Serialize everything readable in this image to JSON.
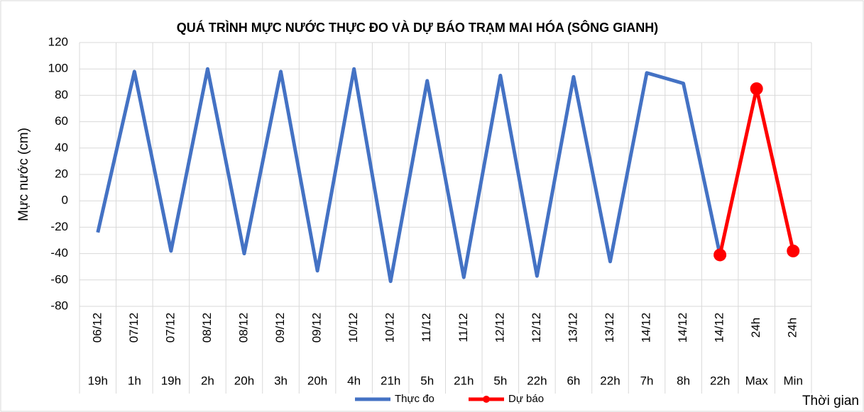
{
  "chart_data": {
    "type": "line",
    "title": "QUÁ TRÌNH MỰC NƯỚC THỰC ĐO VÀ DỰ BÁO TRẠM MAI HÓA (SÔNG GIANH)",
    "y_label": "Mực nước (cm)",
    "x_label": "Thời gian",
    "categories": [
      [
        "06/12",
        "19h"
      ],
      [
        "07/12",
        "1h"
      ],
      [
        "07/12",
        "19h"
      ],
      [
        "08/12",
        "2h"
      ],
      [
        "08/12",
        "20h"
      ],
      [
        "09/12",
        "3h"
      ],
      [
        "09/12",
        "20h"
      ],
      [
        "10/12",
        "4h"
      ],
      [
        "10/12",
        "21h"
      ],
      [
        "11/12",
        "5h"
      ],
      [
        "11/12",
        "21h"
      ],
      [
        "12/12",
        "5h"
      ],
      [
        "12/12",
        "22h"
      ],
      [
        "13/12",
        "6h"
      ],
      [
        "13/12",
        "22h"
      ],
      [
        "14/12",
        "7h"
      ],
      [
        "14/12",
        "8h"
      ],
      [
        "14/12",
        "22h"
      ],
      [
        "24h",
        "Max"
      ],
      [
        "24h",
        "Min"
      ]
    ],
    "series": [
      {
        "name": "Thực đo",
        "color": "#4472c4",
        "markers": false,
        "values": [
          -24,
          98,
          -38,
          100,
          -40,
          98,
          -53,
          100,
          -61,
          91,
          -58,
          95,
          -57,
          94,
          -46,
          97,
          89,
          -41,
          null,
          null
        ]
      },
      {
        "name": "Dự báo",
        "color": "#ff0000",
        "markers": true,
        "values": [
          null,
          null,
          null,
          null,
          null,
          null,
          null,
          null,
          null,
          null,
          null,
          null,
          null,
          null,
          null,
          null,
          null,
          -41,
          85,
          -38
        ]
      }
    ],
    "ylim": [
      -80,
      120
    ],
    "yticks": [
      -80,
      -60,
      -40,
      -20,
      0,
      20,
      40,
      60,
      80,
      100,
      120
    ],
    "grid": true,
    "legend": "bottom"
  }
}
